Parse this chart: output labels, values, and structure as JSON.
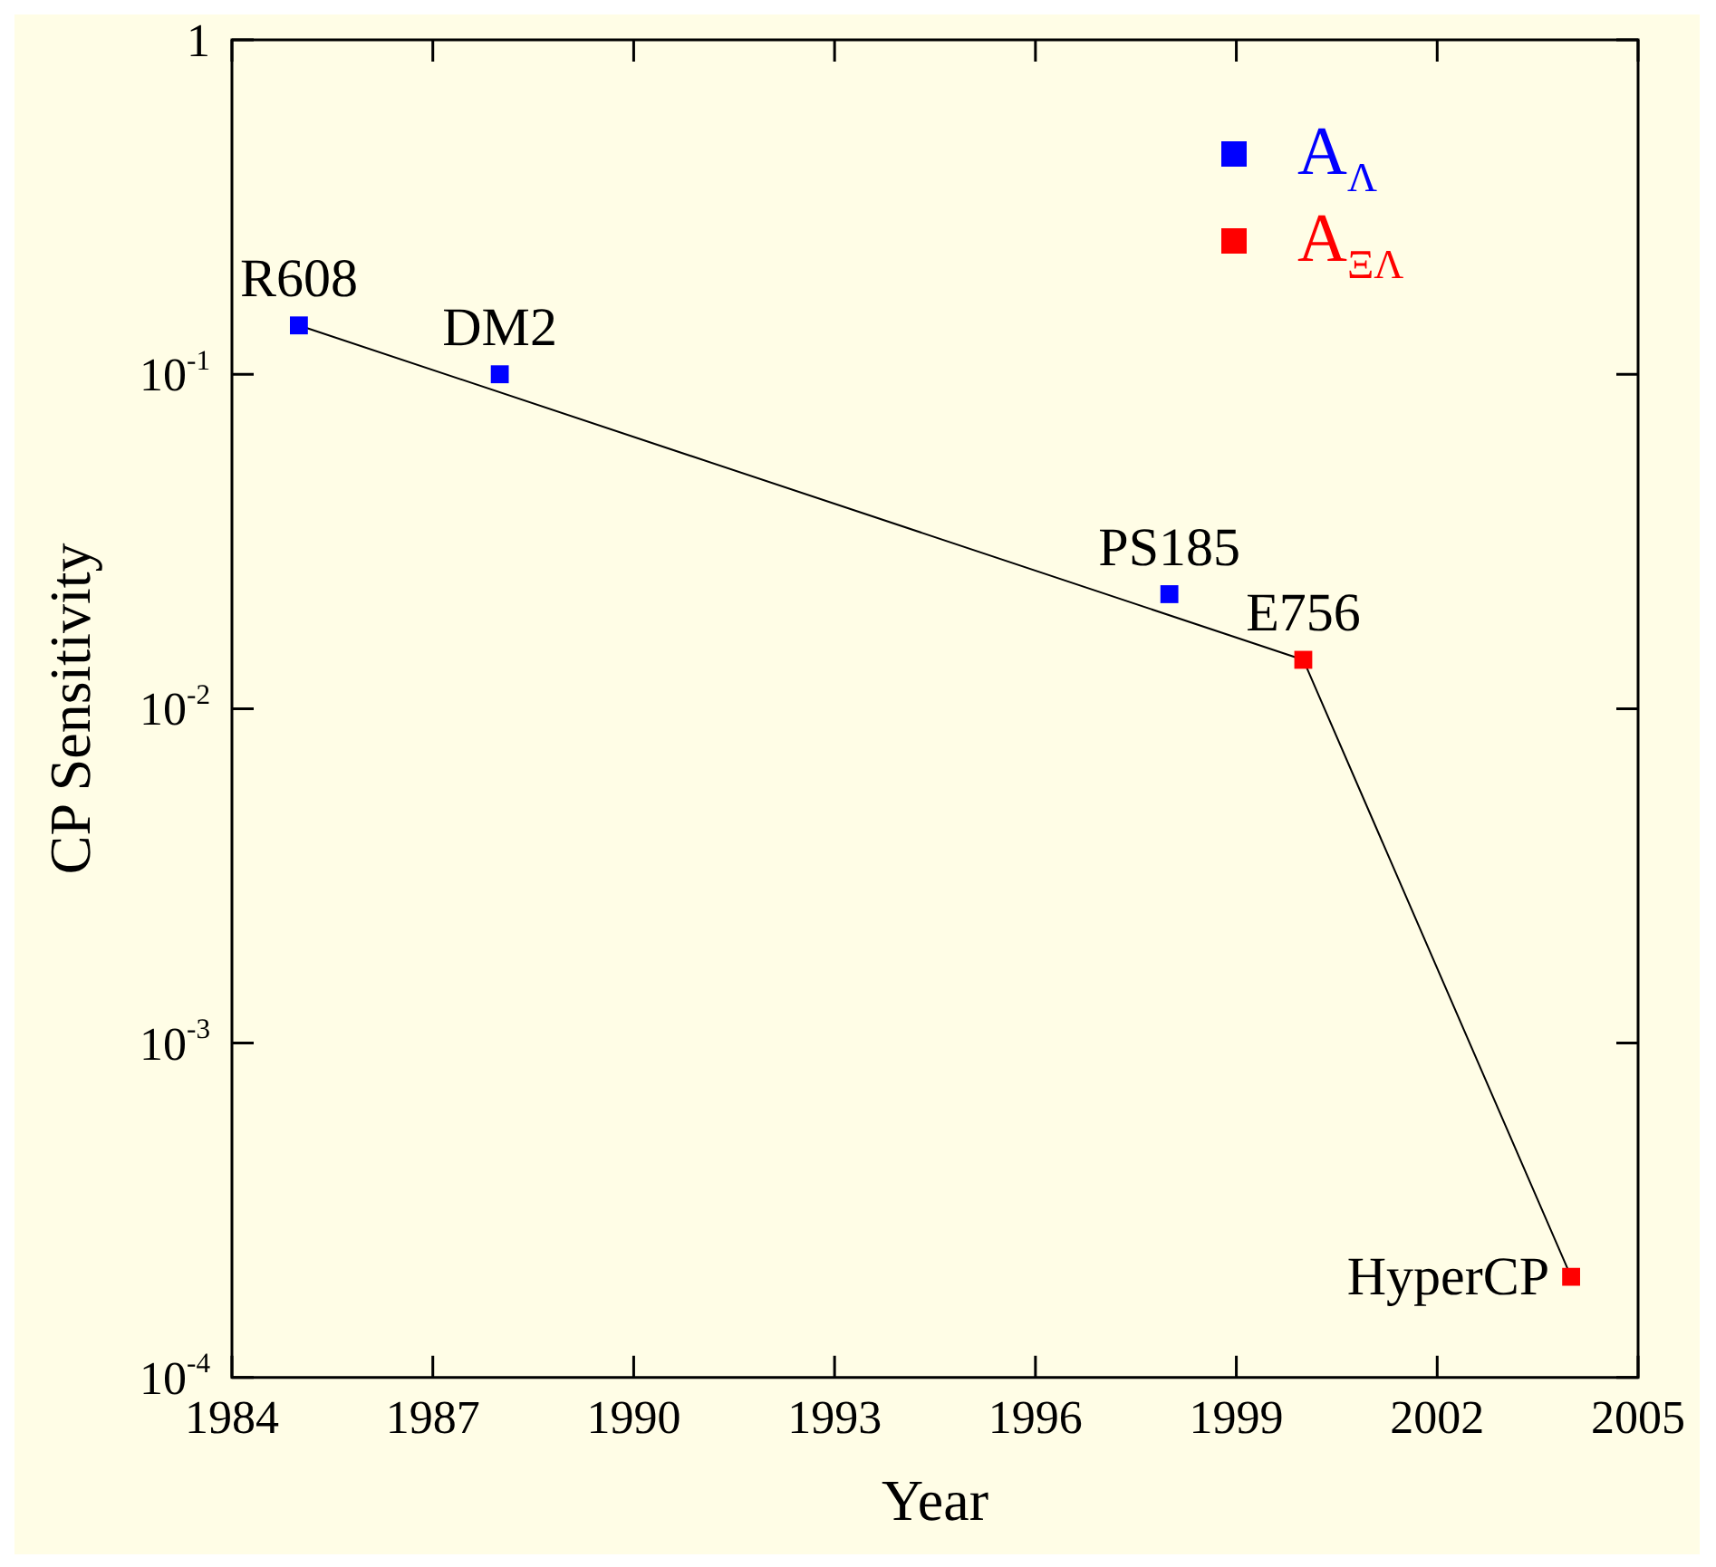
{
  "chart_data": {
    "type": "scatter",
    "xlabel": "Year",
    "ylabel": "CP Sensitivity",
    "log": "y",
    "grid": false,
    "legend": "top right",
    "marker": "square",
    "xlim": [
      1984,
      2005
    ],
    "xticks": [
      1984,
      1987,
      1990,
      1993,
      1996,
      1999,
      2002,
      2005
    ],
    "ylim": [
      0.0001,
      1
    ],
    "yticks": [
      {
        "value": 0.0001,
        "label": "10$^{-4}$"
      },
      {
        "value": 0.001,
        "label": "10$^{-3}$"
      },
      {
        "value": 0.01,
        "label": "10$^{-2}$"
      },
      {
        "value": 0.1,
        "label": "10$^{-1}$"
      },
      1
    ],
    "series": [
      {
        "name": "A$_{Λ}$",
        "color": "#0000ff",
        "x": [
          1985,
          1988,
          1998
        ],
        "values": [
          0.14,
          0.1,
          0.022
        ]
      },
      {
        "name": "A$_{ΞΛ}$",
        "color": "#ff0000",
        "x": [
          2000,
          2004
        ],
        "values": [
          0.014,
          0.0002
        ]
      },
      {
        "type": "line",
        "color": "#000000",
        "marker": "none",
        "x": [
          1985,
          2000,
          2004
        ],
        "values": [
          0.14,
          0.014,
          0.0002
        ]
      }
    ],
    "annotations": [
      {
        "text": "R608",
        "x": 1985,
        "y": 0.14
      },
      {
        "text": "DM2",
        "x": 1988,
        "y": 0.1
      },
      {
        "text": "PS185",
        "x": 1998,
        "y": 0.022
      },
      {
        "text": "E756",
        "x": 2000,
        "y": 0.014
      },
      {
        "text": "HyperCP",
        "x": 2004,
        "y": 0.0002
      }
    ]
  }
}
